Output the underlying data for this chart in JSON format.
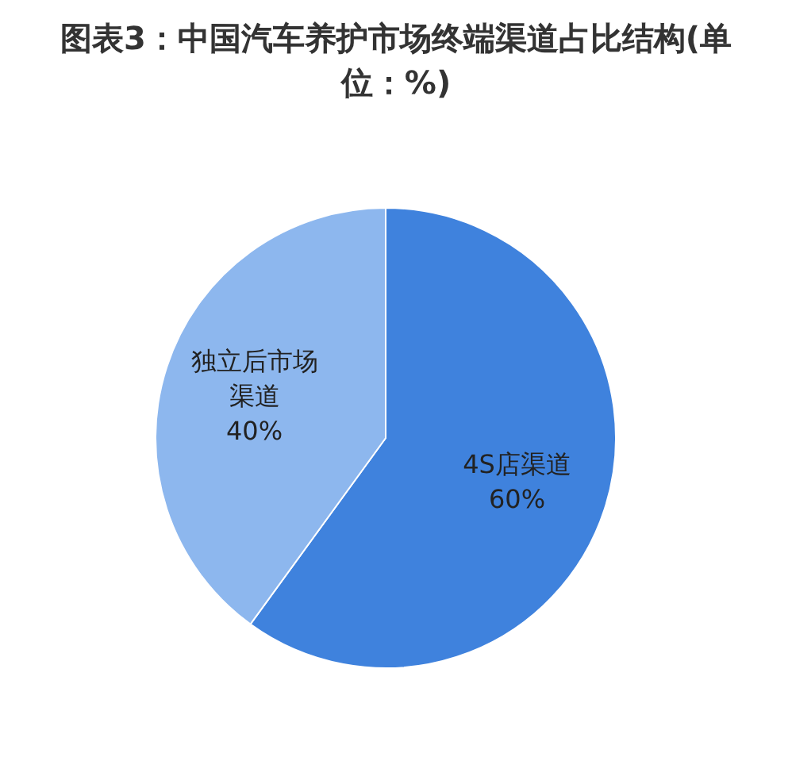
{
  "chart_data": {
    "type": "pie",
    "title": "图表3：中国汽车养护市场终端渠道占比结构(单位：%)",
    "categories": [
      "4S店渠道",
      "独立后市场渠道"
    ],
    "values": [
      60,
      40
    ],
    "colors": [
      "#3f82dd",
      "#8db7ee"
    ],
    "value_labels": [
      "60%",
      "40%"
    ],
    "legend": false
  }
}
